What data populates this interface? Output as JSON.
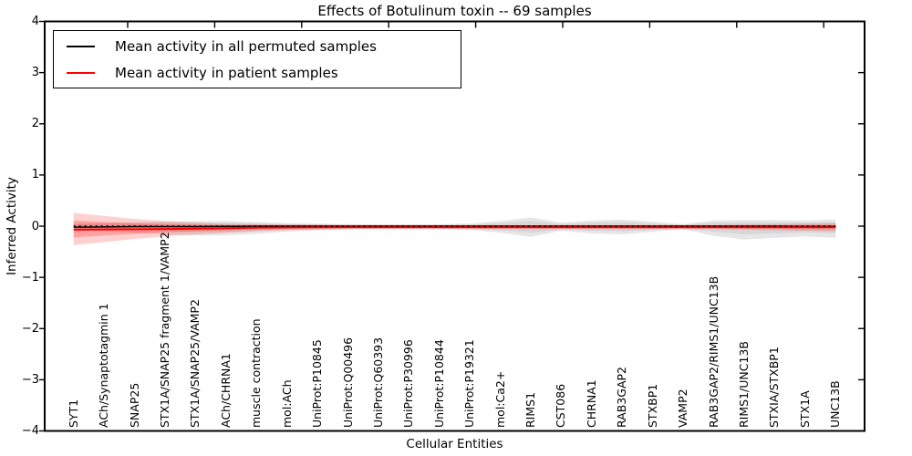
{
  "chart_data": {
    "type": "line",
    "title": "Effects of Botulinum toxin -- 69 samples",
    "xlabel": "Cellular Entities",
    "ylabel": "Inferred Activity",
    "ylim": [
      -4,
      4
    ],
    "grid": false,
    "background": "#ffffff",
    "legend_position": "upper left",
    "yticks": {
      "values": [
        4,
        3,
        2,
        1,
        0,
        -1,
        -2,
        -3,
        -4
      ],
      "labels": [
        "4",
        "3",
        "2",
        "1",
        "0",
        "−1",
        "−2",
        "−3",
        "−4"
      ]
    },
    "zero_line": {
      "y": 0,
      "style": "dotted",
      "color": "#000000"
    },
    "categories": [
      "SYT1",
      "ACh/Synaptotagmin 1",
      "SNAP25",
      "STX1A/SNAP25 fragment 1/VAMP2",
      "STX1A/SNAP25/VAMP2",
      "ACh/CHRNA1",
      "muscle contraction",
      "mol:ACh",
      "UniProt:P10845",
      "UniProt:Q00496",
      "UniProt:Q60393",
      "UniProt:P30996",
      "UniProt:P10844",
      "UniProt:P19321",
      "mol:Ca2+",
      "RIMS1",
      "CST086",
      "CHRNA1",
      "RAB3GAP2",
      "STXBP1",
      "VAMP2",
      "RAB3GAP2/RIMS1/UNC13B",
      "RIMS1/UNC13B",
      "STXIA/STXBP1",
      "STX1A",
      "UNC13B"
    ],
    "series": [
      {
        "name": "Mean activity in all permuted samples",
        "color": "#000000",
        "line_width": 1.5,
        "band_outer_fill": "rgba(130,130,130,0.20)",
        "band_inner_fill": "rgba(130,130,130,0.14)",
        "values": [
          -0.02,
          -0.015,
          -0.01,
          -0.01,
          -0.01,
          -0.005,
          0,
          0,
          0,
          0,
          0,
          0,
          0,
          0,
          0,
          0,
          0,
          0,
          0,
          0,
          0,
          0,
          0,
          0,
          -0.005,
          -0.005
        ],
        "band_outer": {
          "upper": [
            0.05,
            0.06,
            0.08,
            0.09,
            0.1,
            0.1,
            0.08,
            0.06,
            0.05,
            0.04,
            0.04,
            0.04,
            0.04,
            0.05,
            0.1,
            0.17,
            0.07,
            0.11,
            0.13,
            0.09,
            0.04,
            0.11,
            0.12,
            0.12,
            0.11,
            0.13
          ],
          "lower": [
            -0.06,
            -0.09,
            -0.13,
            -0.16,
            -0.18,
            -0.18,
            -0.15,
            -0.11,
            -0.08,
            -0.06,
            -0.05,
            -0.05,
            -0.05,
            -0.07,
            -0.13,
            -0.21,
            -0.09,
            -0.14,
            -0.16,
            -0.11,
            -0.06,
            -0.19,
            -0.26,
            -0.23,
            -0.2,
            -0.23
          ]
        },
        "band_inner": {
          "upper": [
            0.03,
            0.04,
            0.05,
            0.06,
            0.06,
            0.06,
            0.05,
            0.04,
            0.03,
            0.02,
            0.02,
            0.02,
            0.02,
            0.03,
            0.06,
            0.1,
            0.04,
            0.07,
            0.08,
            0.05,
            0.02,
            0.07,
            0.07,
            0.07,
            0.07,
            0.08
          ],
          "lower": [
            -0.04,
            -0.05,
            -0.08,
            -0.1,
            -0.11,
            -0.11,
            -0.09,
            -0.07,
            -0.05,
            -0.04,
            -0.03,
            -0.03,
            -0.03,
            -0.04,
            -0.08,
            -0.13,
            -0.06,
            -0.09,
            -0.1,
            -0.07,
            -0.04,
            -0.11,
            -0.16,
            -0.14,
            -0.12,
            -0.14
          ]
        }
      },
      {
        "name": "Mean activity in patient samples",
        "color": "#ff0000",
        "line_width": 2,
        "band_outer_fill": "rgba(255,20,20,0.20)",
        "band_inner_fill": "rgba(255,20,20,0.25)",
        "values": [
          -0.07,
          -0.065,
          -0.06,
          -0.055,
          -0.05,
          -0.04,
          -0.03,
          -0.025,
          -0.02,
          -0.02,
          -0.02,
          -0.02,
          -0.02,
          -0.02,
          -0.02,
          -0.02,
          -0.02,
          -0.02,
          -0.02,
          -0.02,
          -0.02,
          -0.02,
          -0.02,
          -0.02,
          -0.02,
          -0.02
        ],
        "band_outer": {
          "upper": [
            0.26,
            0.2,
            0.14,
            0.1,
            0.07,
            0.05,
            0.04,
            0.03,
            0.03,
            0.02,
            0.02,
            0.02,
            0.02,
            0.02,
            0.02,
            0.02,
            0.02,
            0.02,
            0.02,
            0.02,
            0.02,
            0.02,
            0.03,
            0.04,
            0.05,
            0.06
          ],
          "lower": [
            -0.37,
            -0.31,
            -0.25,
            -0.2,
            -0.16,
            -0.13,
            -0.1,
            -0.08,
            -0.07,
            -0.06,
            -0.06,
            -0.06,
            -0.06,
            -0.06,
            -0.06,
            -0.06,
            -0.06,
            -0.06,
            -0.06,
            -0.06,
            -0.06,
            -0.06,
            -0.07,
            -0.08,
            -0.09,
            -0.1
          ]
        },
        "band_inner": {
          "upper": [
            0.11,
            0.08,
            0.06,
            0.04,
            0.03,
            0.02,
            0.01,
            0.01,
            0,
            0,
            0,
            0,
            0,
            0,
            0,
            0,
            0,
            0,
            0,
            0,
            0,
            0,
            0.01,
            0.01,
            0.02,
            0.02
          ],
          "lower": [
            -0.22,
            -0.18,
            -0.15,
            -0.12,
            -0.1,
            -0.08,
            -0.06,
            -0.05,
            -0.05,
            -0.04,
            -0.04,
            -0.04,
            -0.04,
            -0.04,
            -0.04,
            -0.04,
            -0.04,
            -0.04,
            -0.04,
            -0.04,
            -0.04,
            -0.04,
            -0.05,
            -0.05,
            -0.06,
            -0.06
          ]
        }
      }
    ]
  }
}
